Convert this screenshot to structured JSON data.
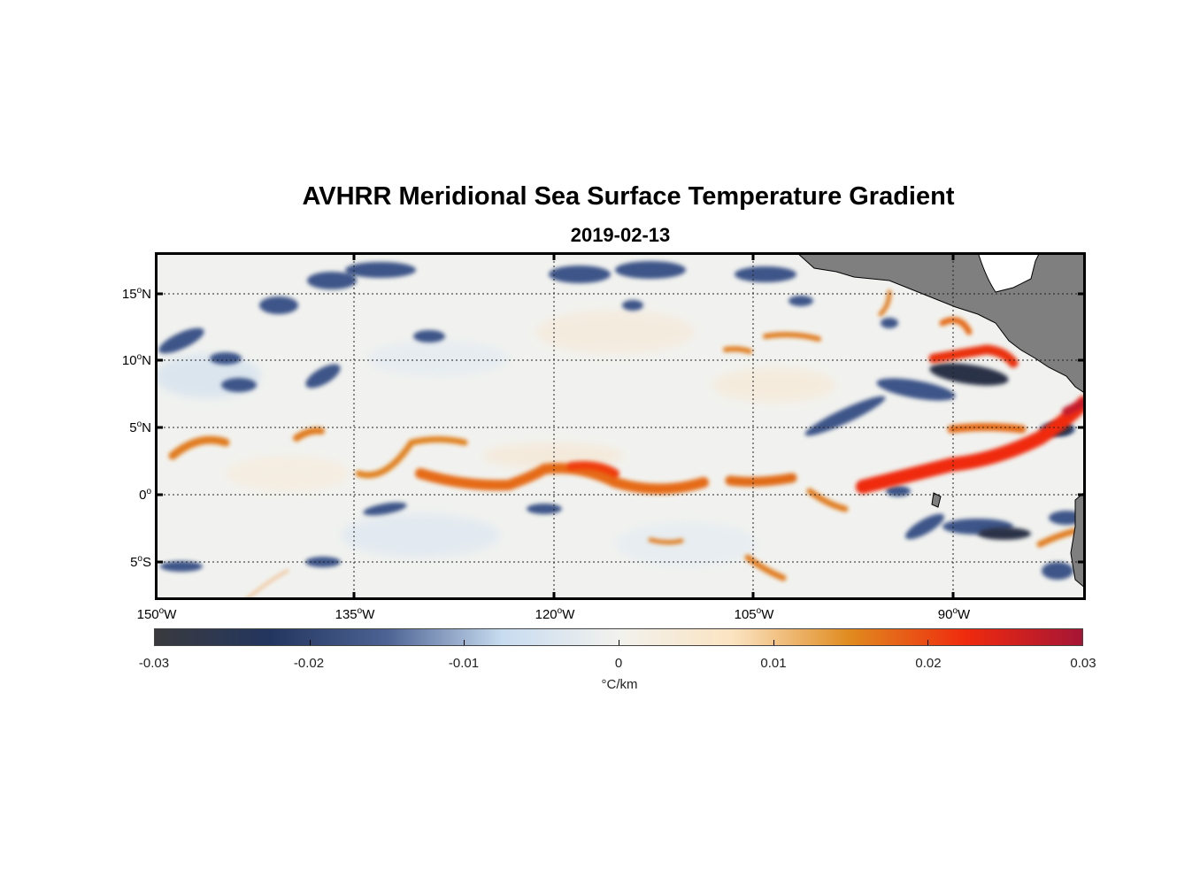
{
  "title": "AVHRR Meridional Sea Surface Temperature Gradient",
  "subtitle": "2019-02-13",
  "map": {
    "region": "Eastern Tropical Pacific",
    "lon_range": [
      -150,
      -80
    ],
    "lat_range": [
      -8,
      18
    ],
    "land_color": "#7f7f7f",
    "gridlines": "dotted",
    "lat_ticks": [
      {
        "deg": "15",
        "hemi": "N"
      },
      {
        "deg": "10",
        "hemi": "N"
      },
      {
        "deg": "5",
        "hemi": "N"
      },
      {
        "deg": "0",
        "hemi": ""
      },
      {
        "deg": "5",
        "hemi": "S"
      }
    ],
    "lon_ticks": [
      {
        "deg": "150",
        "hemi": "W"
      },
      {
        "deg": "135",
        "hemi": "W"
      },
      {
        "deg": "120",
        "hemi": "W"
      },
      {
        "deg": "105",
        "hemi": "W"
      },
      {
        "deg": "90",
        "hemi": "W"
      }
    ]
  },
  "colorbar": {
    "ticks": [
      "-0.03",
      "-0.02",
      "-0.01",
      "0",
      "0.01",
      "0.02",
      "0.03"
    ],
    "unit": "°C/km",
    "range": [
      -0.03,
      0.03
    ],
    "colors": [
      "#3a3a3e",
      "#23365f",
      "#4c6393",
      "#c8dcf0",
      "#f2f2ee",
      "#fbe3c0",
      "#e08a1e",
      "#ef2a0e",
      "#a51535"
    ]
  }
}
